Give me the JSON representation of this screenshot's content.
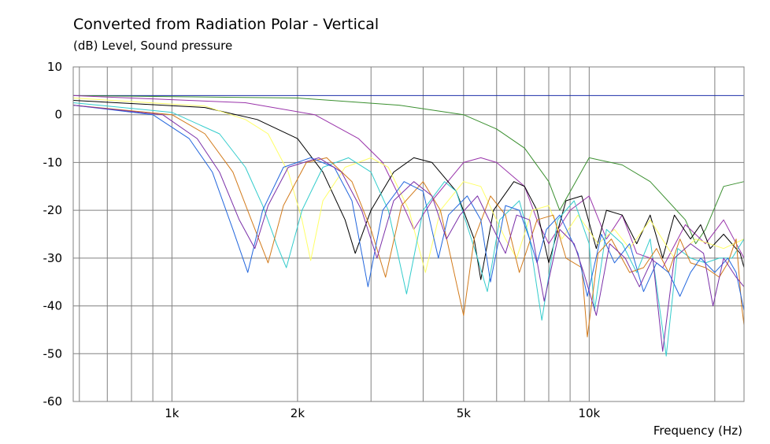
{
  "chart_data": {
    "type": "line",
    "title": "Converted from Radiation Polar - Vertical",
    "subtitle": "(dB)  Level, Sound pressure",
    "xlabel": "Frequency  (Hz)",
    "ylabel": "",
    "xscale": "log",
    "xlim": [
      580,
      23500
    ],
    "ylim": [
      -60,
      10
    ],
    "y_ticks": [
      10,
      0,
      -10,
      -20,
      -30,
      -40,
      -50,
      -60
    ],
    "x_ticks": [
      {
        "value": 1000,
        "label": "1k"
      },
      {
        "value": 2000,
        "label": "2k"
      },
      {
        "value": 5000,
        "label": "5k"
      },
      {
        "value": 10000,
        "label": "10k"
      }
    ],
    "x_gridlines": [
      600,
      700,
      800,
      900,
      1000,
      2000,
      3000,
      4000,
      5000,
      6000,
      7000,
      8000,
      9000,
      10000,
      20000
    ],
    "grid": true,
    "series": [
      {
        "color": "#1c2fa8",
        "values": [
          [
            580,
            4
          ],
          [
            3000,
            4
          ],
          [
            10000,
            4
          ],
          [
            23500,
            4
          ]
        ]
      },
      {
        "color": "#3a8f2f",
        "values": [
          [
            580,
            4
          ],
          [
            2000,
            3.5
          ],
          [
            3500,
            2
          ],
          [
            5000,
            0
          ],
          [
            6000,
            -3
          ],
          [
            7000,
            -7
          ],
          [
            8000,
            -14
          ],
          [
            8500,
            -20
          ],
          [
            10000,
            -9
          ],
          [
            12000,
            -10.5
          ],
          [
            14000,
            -14
          ],
          [
            17000,
            -22
          ],
          [
            18000,
            -27
          ],
          [
            19000,
            -24
          ],
          [
            21000,
            -15
          ],
          [
            23500,
            -14
          ]
        ]
      },
      {
        "color": "#9933aa",
        "values": [
          [
            580,
            4
          ],
          [
            1500,
            2.5
          ],
          [
            2200,
            0
          ],
          [
            2800,
            -5
          ],
          [
            3200,
            -10
          ],
          [
            3500,
            -17
          ],
          [
            3800,
            -24
          ],
          [
            4200,
            -18
          ],
          [
            5000,
            -10
          ],
          [
            5500,
            -9
          ],
          [
            6000,
            -10
          ],
          [
            7000,
            -15
          ],
          [
            7500,
            -22
          ],
          [
            8000,
            -27
          ],
          [
            9000,
            -20
          ],
          [
            10000,
            -17
          ],
          [
            11000,
            -26
          ],
          [
            12000,
            -21
          ],
          [
            13000,
            -29
          ],
          [
            14000,
            -30
          ],
          [
            15000,
            -32
          ],
          [
            17000,
            -23
          ],
          [
            19000,
            -27
          ],
          [
            21000,
            -22
          ],
          [
            23500,
            -30
          ]
        ]
      },
      {
        "color": "#000000",
        "values": [
          [
            580,
            3
          ],
          [
            1200,
            1.5
          ],
          [
            1600,
            -1
          ],
          [
            2000,
            -5
          ],
          [
            2300,
            -12
          ],
          [
            2600,
            -22
          ],
          [
            2750,
            -29
          ],
          [
            3000,
            -20
          ],
          [
            3400,
            -12
          ],
          [
            3800,
            -9
          ],
          [
            4200,
            -10
          ],
          [
            4800,
            -16
          ],
          [
            5300,
            -26
          ],
          [
            5500,
            -34.5
          ],
          [
            5900,
            -20
          ],
          [
            6600,
            -14
          ],
          [
            7000,
            -15
          ],
          [
            7500,
            -20
          ],
          [
            8000,
            -31
          ],
          [
            8800,
            -18
          ],
          [
            9600,
            -17
          ],
          [
            10400,
            -28
          ],
          [
            11000,
            -20
          ],
          [
            12000,
            -21
          ],
          [
            13000,
            -27
          ],
          [
            14000,
            -21
          ],
          [
            15000,
            -30
          ],
          [
            16000,
            -21
          ],
          [
            17500,
            -26
          ],
          [
            18500,
            -23
          ],
          [
            19500,
            -28
          ],
          [
            21000,
            -25
          ],
          [
            23000,
            -29
          ],
          [
            23500,
            -32
          ]
        ]
      },
      {
        "color": "#ffff66",
        "values": [
          [
            580,
            3.5
          ],
          [
            1200,
            1.8
          ],
          [
            1500,
            -1
          ],
          [
            1700,
            -4
          ],
          [
            1900,
            -12
          ],
          [
            2050,
            -22
          ],
          [
            2150,
            -30.5
          ],
          [
            2300,
            -18
          ],
          [
            2600,
            -11
          ],
          [
            3000,
            -9
          ],
          [
            3300,
            -11
          ],
          [
            3700,
            -20
          ],
          [
            4050,
            -33
          ],
          [
            4400,
            -20
          ],
          [
            5000,
            -14
          ],
          [
            5500,
            -15
          ],
          [
            6300,
            -26
          ],
          [
            6700,
            -30
          ],
          [
            7300,
            -20
          ],
          [
            8000,
            -19
          ],
          [
            8600,
            -26
          ],
          [
            9400,
            -21
          ],
          [
            10500,
            -27
          ],
          [
            11500,
            -24
          ],
          [
            12500,
            -28
          ],
          [
            14000,
            -22
          ],
          [
            16000,
            -30
          ],
          [
            18000,
            -26
          ],
          [
            21000,
            -28
          ],
          [
            23500,
            -26
          ]
        ]
      },
      {
        "color": "#33cccc",
        "values": [
          [
            580,
            2.5
          ],
          [
            1000,
            0.5
          ],
          [
            1300,
            -4
          ],
          [
            1500,
            -11
          ],
          [
            1650,
            -19
          ],
          [
            1780,
            -27
          ],
          [
            1880,
            -32
          ],
          [
            2050,
            -20
          ],
          [
            2300,
            -11
          ],
          [
            2650,
            -9
          ],
          [
            3000,
            -12
          ],
          [
            3300,
            -20
          ],
          [
            3650,
            -37.5
          ],
          [
            4000,
            -20
          ],
          [
            4500,
            -14
          ],
          [
            4800,
            -16
          ],
          [
            5400,
            -30
          ],
          [
            5700,
            -37
          ],
          [
            6100,
            -22
          ],
          [
            6800,
            -18
          ],
          [
            7200,
            -26
          ],
          [
            7700,
            -43
          ],
          [
            8400,
            -22
          ],
          [
            9200,
            -18
          ],
          [
            10000,
            -27
          ],
          [
            10300,
            -41
          ],
          [
            11000,
            -24
          ],
          [
            12000,
            -27
          ],
          [
            13000,
            -33
          ],
          [
            14000,
            -26
          ],
          [
            15300,
            -50.5
          ],
          [
            16300,
            -28
          ],
          [
            17500,
            -30
          ],
          [
            19000,
            -31
          ],
          [
            20500,
            -30
          ],
          [
            22000,
            -30
          ],
          [
            23500,
            -26
          ]
        ]
      },
      {
        "color": "#d27a1a",
        "values": [
          [
            580,
            2
          ],
          [
            1000,
            0
          ],
          [
            1200,
            -4
          ],
          [
            1400,
            -12
          ],
          [
            1550,
            -22
          ],
          [
            1700,
            -31
          ],
          [
            1850,
            -19
          ],
          [
            2100,
            -10
          ],
          [
            2350,
            -9
          ],
          [
            2700,
            -14
          ],
          [
            3000,
            -24
          ],
          [
            3250,
            -34
          ],
          [
            3550,
            -19
          ],
          [
            4000,
            -14
          ],
          [
            4400,
            -20
          ],
          [
            4800,
            -35
          ],
          [
            5000,
            -42
          ],
          [
            5300,
            -26
          ],
          [
            5800,
            -17
          ],
          [
            6300,
            -21
          ],
          [
            6800,
            -33
          ],
          [
            7500,
            -22
          ],
          [
            8200,
            -21
          ],
          [
            8800,
            -30
          ],
          [
            9600,
            -32
          ],
          [
            9900,
            -46.5
          ],
          [
            10500,
            -29
          ],
          [
            11300,
            -26
          ],
          [
            12500,
            -33
          ],
          [
            13500,
            -32
          ],
          [
            14500,
            -28
          ],
          [
            15500,
            -33
          ],
          [
            16500,
            -26
          ],
          [
            17500,
            -31
          ],
          [
            19000,
            -32
          ],
          [
            20500,
            -34
          ],
          [
            21500,
            -31
          ],
          [
            22500,
            -26
          ],
          [
            23200,
            -40
          ],
          [
            23500,
            -44
          ]
        ]
      },
      {
        "color": "#2266dd",
        "values": [
          [
            580,
            2
          ],
          [
            900,
            0
          ],
          [
            1100,
            -5
          ],
          [
            1250,
            -12
          ],
          [
            1400,
            -24
          ],
          [
            1520,
            -33
          ],
          [
            1650,
            -20
          ],
          [
            1850,
            -11
          ],
          [
            2150,
            -9
          ],
          [
            2450,
            -11
          ],
          [
            2700,
            -18
          ],
          [
            2950,
            -36
          ],
          [
            3200,
            -20
          ],
          [
            3600,
            -14
          ],
          [
            4000,
            -16
          ],
          [
            4350,
            -30
          ],
          [
            4600,
            -21
          ],
          [
            5100,
            -17
          ],
          [
            5500,
            -22
          ],
          [
            5800,
            -35
          ],
          [
            6300,
            -19
          ],
          [
            6800,
            -20
          ],
          [
            7200,
            -26
          ],
          [
            7500,
            -31
          ],
          [
            7900,
            -24
          ],
          [
            8500,
            -21
          ],
          [
            9400,
            -29
          ],
          [
            9900,
            -38
          ],
          [
            10700,
            -25
          ],
          [
            11500,
            -31
          ],
          [
            12500,
            -27
          ],
          [
            13500,
            -37
          ],
          [
            14500,
            -31
          ],
          [
            15500,
            -33
          ],
          [
            16500,
            -38
          ],
          [
            17500,
            -33
          ],
          [
            18500,
            -30
          ],
          [
            20000,
            -33
          ],
          [
            21500,
            -30
          ],
          [
            22500,
            -33
          ],
          [
            23500,
            -41
          ]
        ]
      },
      {
        "color": "#7a2fa8",
        "values": [
          [
            580,
            2
          ],
          [
            950,
            0
          ],
          [
            1150,
            -5
          ],
          [
            1300,
            -12
          ],
          [
            1450,
            -22
          ],
          [
            1580,
            -28
          ],
          [
            1700,
            -19
          ],
          [
            1900,
            -11
          ],
          [
            2250,
            -9
          ],
          [
            2550,
            -12
          ],
          [
            2850,
            -20
          ],
          [
            3100,
            -30
          ],
          [
            3400,
            -18
          ],
          [
            3800,
            -14
          ],
          [
            4200,
            -17
          ],
          [
            4550,
            -26
          ],
          [
            4900,
            -21
          ],
          [
            5400,
            -17
          ],
          [
            5900,
            -24
          ],
          [
            6300,
            -29
          ],
          [
            6700,
            -21
          ],
          [
            7200,
            -22
          ],
          [
            7800,
            -39
          ],
          [
            8500,
            -24
          ],
          [
            9200,
            -27
          ],
          [
            9700,
            -33
          ],
          [
            10400,
            -42
          ],
          [
            11200,
            -27
          ],
          [
            12200,
            -30
          ],
          [
            13200,
            -36
          ],
          [
            14200,
            -30
          ],
          [
            15000,
            -49.5
          ],
          [
            16000,
            -30
          ],
          [
            17500,
            -27
          ],
          [
            18800,
            -29
          ],
          [
            19800,
            -40
          ],
          [
            21000,
            -30
          ],
          [
            22500,
            -34
          ],
          [
            23500,
            -36
          ]
        ]
      }
    ]
  }
}
